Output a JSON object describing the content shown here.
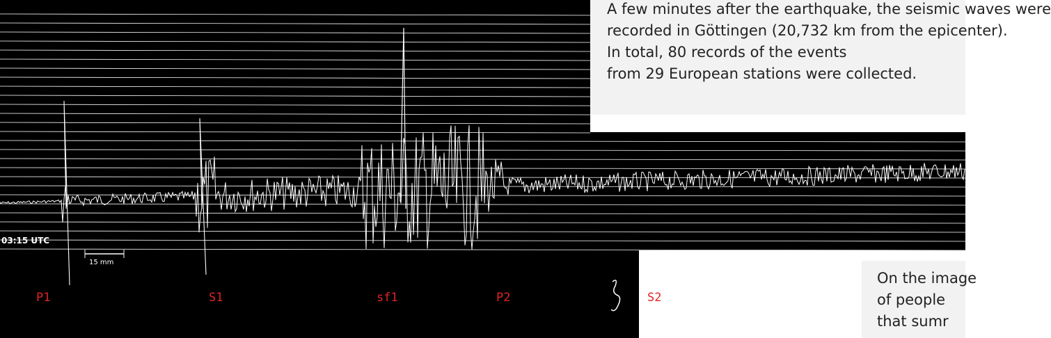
{
  "caption": {
    "lines": [
      "A few minutes after the earthquake, the seismic waves were",
      "recorded in Göttingen (20,732 km from the epicenter).",
      "In total, 80 records of the events",
      "from 29 European stations were collected."
    ]
  },
  "seismogram": {
    "time_label": "03:15 UTC",
    "scale_label": "15 mm",
    "phases": [
      "P1",
      "S1",
      "sf1",
      "P2",
      "S2"
    ]
  },
  "note": {
    "lines": [
      "On the image",
      "of people",
      "that sumr"
    ]
  }
}
